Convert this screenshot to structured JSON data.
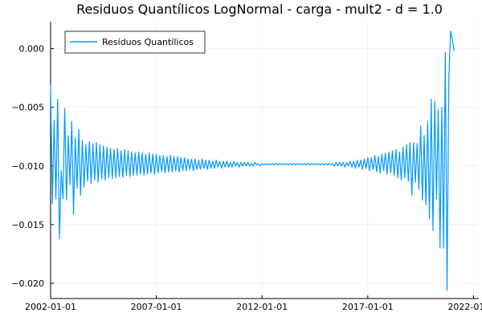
{
  "chart_data": {
    "type": "line",
    "title": "Residuos Quantílicos LogNormal - carga - mult2 - d = 1.0",
    "xlabel": "",
    "ylabel": "",
    "x_axis": {
      "kind": "date",
      "range": [
        "2002-01-01",
        "2022-04-01"
      ],
      "tick_labels": [
        "2002-01-01",
        "2007-01-01",
        "2012-01-01",
        "2017-01-01",
        "2022-01-01"
      ]
    },
    "y_axis": {
      "range": [
        -0.0213,
        0.0023
      ],
      "tick_values": [
        0.0,
        -0.005,
        -0.01,
        -0.015,
        -0.02
      ],
      "tick_labels": [
        "0.000",
        "−0.005",
        "−0.010",
        "−0.015",
        "−0.020"
      ]
    },
    "grid": true,
    "legend": {
      "position": "top-left"
    },
    "series": [
      {
        "name": "Resíduos Quantílicos",
        "color": "#009af9",
        "start": "2002-01-01",
        "frequency": "monthly",
        "values": [
          -0.0031,
          -0.0132,
          -0.0061,
          -0.0128,
          -0.0043,
          -0.0162,
          -0.0104,
          -0.0128,
          -0.0051,
          -0.0129,
          -0.0074,
          -0.0116,
          -0.0062,
          -0.0141,
          -0.0076,
          -0.0119,
          -0.0069,
          -0.0125,
          -0.0078,
          -0.0118,
          -0.0082,
          -0.0113,
          -0.0079,
          -0.0115,
          -0.0081,
          -0.0112,
          -0.008,
          -0.0114,
          -0.0082,
          -0.0111,
          -0.0083,
          -0.0112,
          -0.0084,
          -0.011,
          -0.0085,
          -0.0111,
          -0.0086,
          -0.011,
          -0.0085,
          -0.0109,
          -0.0087,
          -0.011,
          -0.0086,
          -0.0108,
          -0.0087,
          -0.0109,
          -0.0088,
          -0.0108,
          -0.0089,
          -0.0108,
          -0.0088,
          -0.0107,
          -0.0089,
          -0.0108,
          -0.009,
          -0.0107,
          -0.0089,
          -0.0106,
          -0.009,
          -0.0107,
          -0.009,
          -0.0106,
          -0.0091,
          -0.0105,
          -0.0091,
          -0.0106,
          -0.0092,
          -0.0105,
          -0.0091,
          -0.0105,
          -0.0092,
          -0.0104,
          -0.0092,
          -0.0105,
          -0.0093,
          -0.0104,
          -0.0093,
          -0.0104,
          -0.0094,
          -0.0103,
          -0.0094,
          -0.0104,
          -0.0094,
          -0.0103,
          -0.0095,
          -0.0103,
          -0.0094,
          -0.0102,
          -0.0095,
          -0.0103,
          -0.0095,
          -0.0102,
          -0.0096,
          -0.0102,
          -0.0095,
          -0.0101,
          -0.0096,
          -0.0102,
          -0.0096,
          -0.0101,
          -0.0096,
          -0.0101,
          -0.0097,
          -0.0101,
          -0.0096,
          -0.01,
          -0.0097,
          -0.0101,
          -0.0097,
          -0.01,
          -0.0097,
          -0.01,
          -0.0097,
          -0.01,
          -0.0098,
          -0.01,
          -0.0097,
          -0.0099,
          -0.0098,
          -0.01,
          -0.0098,
          -0.0099,
          -0.0098,
          -0.0099,
          -0.0098,
          -0.0099,
          -0.0098,
          -0.0099,
          -0.0098,
          -0.0099,
          -0.0098,
          -0.0099,
          -0.0098,
          -0.0099,
          -0.0098,
          -0.0099,
          -0.0098,
          -0.0099,
          -0.0098,
          -0.0099,
          -0.0098,
          -0.0099,
          -0.0098,
          -0.0099,
          -0.0098,
          -0.0099,
          -0.0098,
          -0.0099,
          -0.0098,
          -0.0099,
          -0.0098,
          -0.0099,
          -0.0098,
          -0.0099,
          -0.0098,
          -0.0099,
          -0.0098,
          -0.0099,
          -0.0098,
          -0.0099,
          -0.0098,
          -0.01,
          -0.0097,
          -0.01,
          -0.0097,
          -0.01,
          -0.0097,
          -0.0101,
          -0.0097,
          -0.01,
          -0.0096,
          -0.0101,
          -0.0096,
          -0.0102,
          -0.0095,
          -0.0101,
          -0.0095,
          -0.0103,
          -0.0094,
          -0.0102,
          -0.0093,
          -0.0104,
          -0.0093,
          -0.0103,
          -0.0091,
          -0.0105,
          -0.0092,
          -0.0106,
          -0.009,
          -0.0104,
          -0.0089,
          -0.0107,
          -0.0088,
          -0.0106,
          -0.0087,
          -0.0108,
          -0.0086,
          -0.011,
          -0.0088,
          -0.0112,
          -0.0084,
          -0.011,
          -0.0082,
          -0.0113,
          -0.008,
          -0.0125,
          -0.008,
          -0.0114,
          -0.0081,
          -0.012,
          -0.0066,
          -0.0129,
          -0.0074,
          -0.0133,
          -0.0062,
          -0.0145,
          -0.0043,
          -0.0155,
          -0.0045,
          -0.0128,
          -0.0052,
          -0.017,
          -0.005,
          -0.017,
          -0.0003,
          -0.0206,
          -0.0025,
          0.0015,
          0.0008,
          -0.0002
        ]
      }
    ]
  }
}
